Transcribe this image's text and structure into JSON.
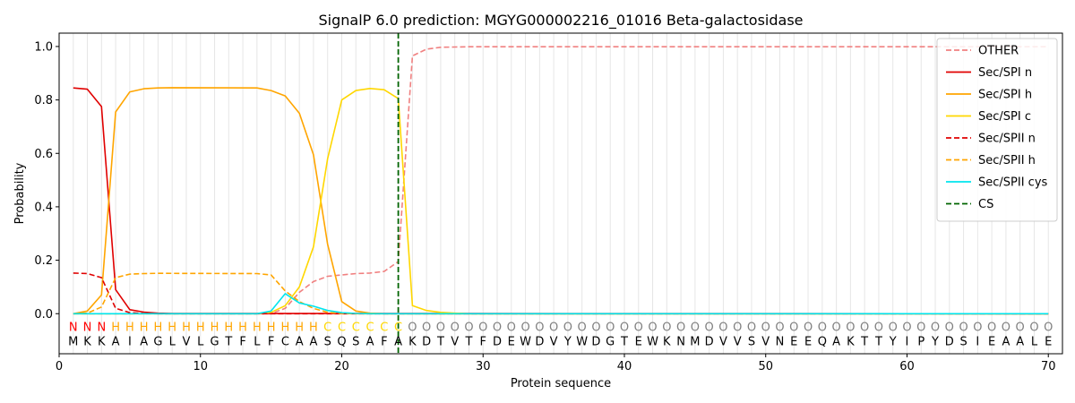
{
  "chart_data": {
    "type": "line",
    "title": "SignalP 6.0 prediction: MGYG000002216_01016 Beta-galactosidase",
    "xlabel": "Protein sequence",
    "ylabel": "Probability",
    "xlim": [
      0,
      71
    ],
    "ylim": [
      -0.15,
      1.05
    ],
    "xticks": [
      0,
      10,
      20,
      30,
      40,
      50,
      60,
      70
    ],
    "yticks": [
      0.0,
      0.2,
      0.4,
      0.6,
      0.8,
      1.0
    ],
    "ytick_labels": [
      "0.0",
      "0.2",
      "0.4",
      "0.6",
      "0.8",
      "1.0"
    ],
    "grid": "vertical lines at each residue",
    "legend_position": "top-right",
    "cleavage_site": 24,
    "sequence": [
      "M",
      "K",
      "K",
      "A",
      "I",
      "A",
      "G",
      "L",
      "V",
      "L",
      "G",
      "T",
      "F",
      "L",
      "F",
      "C",
      "A",
      "A",
      "S",
      "Q",
      "S",
      "A",
      "F",
      "A",
      "K",
      "D",
      "T",
      "V",
      "T",
      "F",
      "D",
      "E",
      "W",
      "D",
      "V",
      "Y",
      "W",
      "D",
      "G",
      "T",
      "E",
      "W",
      "K",
      "N",
      "M",
      "D",
      "V",
      "V",
      "S",
      "V",
      "N",
      "E",
      "E",
      "Q",
      "A",
      "K",
      "T",
      "T",
      "Y",
      "I",
      "P",
      "Y",
      "D",
      "S",
      "I",
      "E",
      "A",
      "A",
      "L",
      "E"
    ],
    "labels": [
      "N",
      "N",
      "N",
      "H",
      "H",
      "H",
      "H",
      "H",
      "H",
      "H",
      "H",
      "H",
      "H",
      "H",
      "H",
      "H",
      "H",
      "H",
      "C",
      "C",
      "C",
      "C",
      "C",
      "C",
      "O",
      "O",
      "O",
      "O",
      "O",
      "O",
      "O",
      "O",
      "O",
      "O",
      "O",
      "O",
      "O",
      "O",
      "O",
      "O",
      "O",
      "O",
      "O",
      "O",
      "O",
      "O",
      "O",
      "O",
      "O",
      "O",
      "O",
      "O",
      "O",
      "O",
      "O",
      "O",
      "O",
      "O",
      "O",
      "O",
      "O",
      "O",
      "O",
      "O",
      "O",
      "O",
      "O",
      "O",
      "O",
      "O"
    ],
    "label_colors": {
      "N": "#ff0000",
      "H": "#ffa500",
      "C": "#ffd700",
      "O": "#808080"
    },
    "series": [
      {
        "name": "OTHER",
        "color": "#f08080",
        "dash": true,
        "points": [
          [
            1,
            0.0
          ],
          [
            2,
            0.0
          ],
          [
            3,
            0.0
          ],
          [
            4,
            0.0
          ],
          [
            5,
            0.0
          ],
          [
            6,
            0.0
          ],
          [
            7,
            0.0
          ],
          [
            8,
            0.0
          ],
          [
            9,
            0.0
          ],
          [
            10,
            0.0
          ],
          [
            11,
            0.0
          ],
          [
            12,
            0.0
          ],
          [
            13,
            0.0
          ],
          [
            14,
            0.0
          ],
          [
            15,
            0.0
          ],
          [
            16,
            0.02
          ],
          [
            17,
            0.08
          ],
          [
            18,
            0.12
          ],
          [
            19,
            0.14
          ],
          [
            20,
            0.145
          ],
          [
            21,
            0.15
          ],
          [
            22,
            0.152
          ],
          [
            23,
            0.158
          ],
          [
            24,
            0.195
          ],
          [
            25,
            0.965
          ],
          [
            26,
            0.99
          ],
          [
            27,
            0.997
          ],
          [
            28,
            0.998
          ],
          [
            29,
            0.999
          ],
          [
            30,
            0.999
          ],
          [
            70,
            0.999
          ]
        ]
      },
      {
        "name": "Sec/SPI n",
        "color": "#e00000",
        "dash": false,
        "points": [
          [
            1,
            0.845
          ],
          [
            2,
            0.84
          ],
          [
            3,
            0.775
          ],
          [
            4,
            0.09
          ],
          [
            5,
            0.015
          ],
          [
            6,
            0.006
          ],
          [
            7,
            0.002
          ],
          [
            8,
            0.001
          ],
          [
            70,
            0.0
          ]
        ]
      },
      {
        "name": "Sec/SPI h",
        "color": "#ffa500",
        "dash": false,
        "points": [
          [
            1,
            0.0
          ],
          [
            2,
            0.01
          ],
          [
            3,
            0.07
          ],
          [
            4,
            0.755
          ],
          [
            5,
            0.83
          ],
          [
            6,
            0.842
          ],
          [
            7,
            0.845
          ],
          [
            8,
            0.846
          ],
          [
            14,
            0.845
          ],
          [
            15,
            0.835
          ],
          [
            16,
            0.815
          ],
          [
            17,
            0.75
          ],
          [
            18,
            0.595
          ],
          [
            19,
            0.26
          ],
          [
            20,
            0.045
          ],
          [
            21,
            0.01
          ],
          [
            22,
            0.002
          ],
          [
            23,
            0.0
          ],
          [
            70,
            0.0
          ]
        ]
      },
      {
        "name": "Sec/SPI c",
        "color": "#ffd700",
        "dash": false,
        "points": [
          [
            1,
            0.0
          ],
          [
            14,
            0.0
          ],
          [
            15,
            0.005
          ],
          [
            16,
            0.03
          ],
          [
            17,
            0.1
          ],
          [
            18,
            0.25
          ],
          [
            19,
            0.58
          ],
          [
            20,
            0.8
          ],
          [
            21,
            0.835
          ],
          [
            22,
            0.843
          ],
          [
            23,
            0.838
          ],
          [
            24,
            0.805
          ],
          [
            25,
            0.03
          ],
          [
            26,
            0.012
          ],
          [
            27,
            0.005
          ],
          [
            28,
            0.002
          ],
          [
            29,
            0.0
          ],
          [
            70,
            0.0
          ]
        ]
      },
      {
        "name": "Sec/SPII n",
        "color": "#e00000",
        "dash": true,
        "points": [
          [
            1,
            0.152
          ],
          [
            2,
            0.15
          ],
          [
            3,
            0.135
          ],
          [
            4,
            0.02
          ],
          [
            5,
            0.004
          ],
          [
            6,
            0.001
          ],
          [
            7,
            0.0
          ],
          [
            70,
            0.0
          ]
        ]
      },
      {
        "name": "Sec/SPII h",
        "color": "#ffa500",
        "dash": true,
        "points": [
          [
            1,
            0.0
          ],
          [
            2,
            0.002
          ],
          [
            3,
            0.025
          ],
          [
            4,
            0.135
          ],
          [
            5,
            0.148
          ],
          [
            6,
            0.15
          ],
          [
            7,
            0.151
          ],
          [
            14,
            0.15
          ],
          [
            15,
            0.145
          ],
          [
            16,
            0.085
          ],
          [
            17,
            0.045
          ],
          [
            18,
            0.02
          ],
          [
            19,
            0.005
          ],
          [
            20,
            0.001
          ],
          [
            21,
            0.0
          ],
          [
            70,
            0.0
          ]
        ]
      },
      {
        "name": "Sec/SPII cys",
        "color": "#00e5ee",
        "dash": false,
        "points": [
          [
            1,
            0.0
          ],
          [
            14,
            0.0
          ],
          [
            15,
            0.01
          ],
          [
            16,
            0.075
          ],
          [
            17,
            0.04
          ],
          [
            18,
            0.028
          ],
          [
            19,
            0.012
          ],
          [
            20,
            0.004
          ],
          [
            21,
            0.001
          ],
          [
            22,
            0.0
          ],
          [
            70,
            0.0
          ]
        ]
      }
    ],
    "legend": [
      {
        "name": "OTHER",
        "color": "#f08080",
        "dash": true
      },
      {
        "name": "Sec/SPI n",
        "color": "#e00000",
        "dash": false
      },
      {
        "name": "Sec/SPI h",
        "color": "#ffa500",
        "dash": false
      },
      {
        "name": "Sec/SPI c",
        "color": "#ffd700",
        "dash": false
      },
      {
        "name": "Sec/SPII n",
        "color": "#e00000",
        "dash": true
      },
      {
        "name": "Sec/SPII h",
        "color": "#ffa500",
        "dash": true
      },
      {
        "name": "Sec/SPII cys",
        "color": "#00e5ee",
        "dash": false
      },
      {
        "name": "CS",
        "color": "#006400",
        "dash": true
      }
    ]
  }
}
